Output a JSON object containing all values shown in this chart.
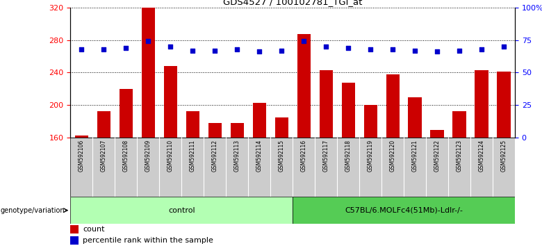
{
  "title": "GDS4527 / 100102781_TGI_at",
  "samples": [
    "GSM592106",
    "GSM592107",
    "GSM592108",
    "GSM592109",
    "GSM592110",
    "GSM592111",
    "GSM592112",
    "GSM592113",
    "GSM592114",
    "GSM592115",
    "GSM592116",
    "GSM592117",
    "GSM592118",
    "GSM592119",
    "GSM592120",
    "GSM592121",
    "GSM592122",
    "GSM592123",
    "GSM592124",
    "GSM592125"
  ],
  "counts": [
    163,
    193,
    220,
    320,
    248,
    193,
    178,
    178,
    203,
    185,
    287,
    243,
    228,
    200,
    238,
    210,
    170,
    193,
    243,
    241
  ],
  "percentile": [
    68,
    68,
    69,
    74,
    70,
    67,
    67,
    68,
    66,
    67,
    74,
    70,
    69,
    68,
    68,
    67,
    66,
    67,
    68,
    70
  ],
  "group1_label": "control",
  "group1_count": 10,
  "group2_label": "C57BL/6.MOLFc4(51Mb)-Ldlr-/-",
  "group2_count": 10,
  "ylim_left": [
    160,
    320
  ],
  "ylim_right": [
    0,
    100
  ],
  "yticks_left": [
    160,
    200,
    240,
    280,
    320
  ],
  "yticks_right": [
    0,
    25,
    50,
    75,
    100
  ],
  "bar_color": "#cc0000",
  "dot_color": "#0000cc",
  "group1_bg": "#b3ffb3",
  "group2_bg": "#55cc55",
  "sample_bg": "#cccccc",
  "legend_count_label": "count",
  "legend_pct_label": "percentile rank within the sample",
  "fig_width": 7.8,
  "fig_height": 3.54
}
